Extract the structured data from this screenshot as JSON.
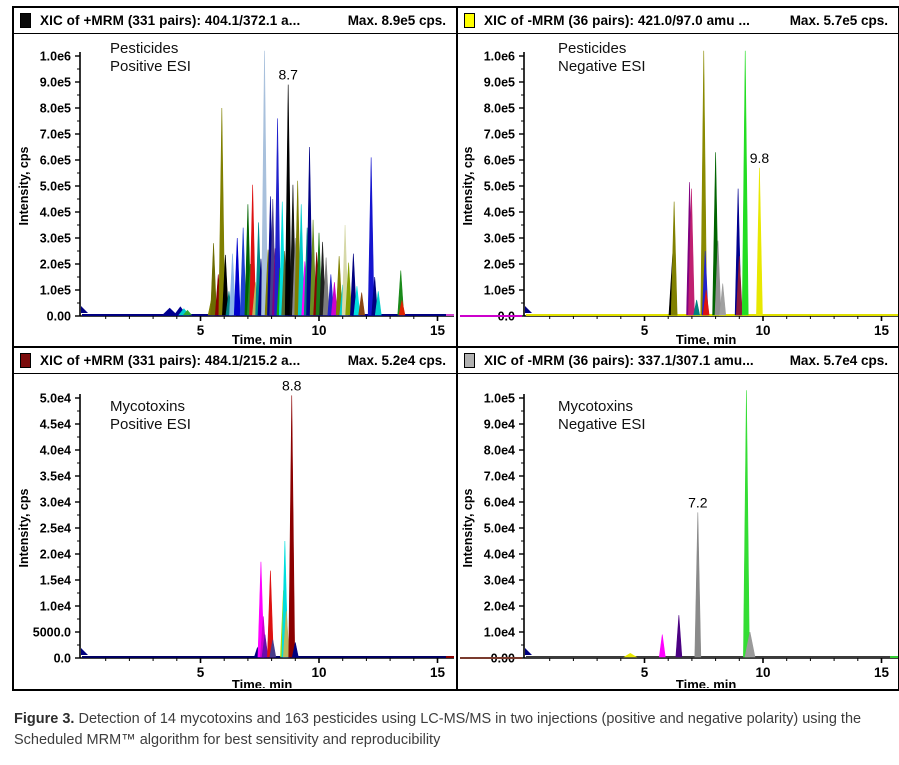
{
  "caption": {
    "label": "Figure 3.",
    "text": " Detection of 14 mycotoxins and 163 pesticides using LC-MS/MS in two injections (positive and negative polarity) using the Scheduled MRM™ algorithm for best sensitivity and reproducibility"
  },
  "chart_data": [
    {
      "type": "line",
      "kind": "chromatogram-overlay",
      "header": {
        "icon_color": "#0a0a0a",
        "title": "XIC of +MRM (331 pairs): 404.1/372.1 a...",
        "max_label": "Max. 8.9e5 cps."
      },
      "corner_label": [
        "Pesticides",
        "Positive ESI"
      ],
      "xlabel": "Time, min",
      "ylabel": "Intensity, cps",
      "xlim": [
        0,
        15.7
      ],
      "ylim": [
        0,
        1000000
      ],
      "x_major_ticks": [
        5,
        10,
        15
      ],
      "x_minor_step": 1,
      "y_tick_labels_top_to_bottom": [
        "1.0e6",
        "9.0e5",
        "8.0e5",
        "7.0e5",
        "6.0e5",
        "5.0e5",
        "4.0e5",
        "3.0e5",
        "2.0e5",
        "1.0e5",
        "0.00"
      ],
      "annotation": {
        "label": "8.7",
        "time": 8.7
      },
      "baseline_color": "#000080",
      "baseline_right_color": "#cc44cc",
      "baseline_left_color": null,
      "peaks": [
        [
          3.7,
          30000,
          "#000090",
          7
        ],
        [
          4.15,
          35000,
          "#000090",
          6
        ],
        [
          4.3,
          28000,
          "#00cccc",
          5
        ],
        [
          4.45,
          22000,
          "#33aa33",
          4
        ],
        [
          5.45,
          60000,
          "#808000"
        ],
        [
          5.55,
          280000,
          "#6b6b00"
        ],
        [
          5.75,
          160000,
          "#8b0000"
        ],
        [
          5.9,
          800000,
          "#808000"
        ],
        [
          6.05,
          235000,
          "#000000"
        ],
        [
          6.2,
          95000,
          "#008080"
        ],
        [
          6.35,
          240000,
          "#8ab4e8"
        ],
        [
          6.55,
          300000,
          "#0000cd"
        ],
        [
          6.8,
          340000,
          "#1e40d0"
        ],
        [
          7.0,
          430000,
          "#006400"
        ],
        [
          7.1,
          200000,
          "#228b22"
        ],
        [
          7.2,
          505000,
          "#dd1111"
        ],
        [
          7.32,
          130000,
          "#b8b860"
        ],
        [
          7.45,
          360000,
          "#008b8b"
        ],
        [
          7.55,
          220000,
          "#000080"
        ],
        [
          7.7,
          1020000,
          "#a8c0dc"
        ],
        [
          7.85,
          255000,
          "#808000"
        ],
        [
          7.95,
          460000,
          "#000090"
        ],
        [
          8.05,
          450000,
          "#483d8b"
        ],
        [
          8.15,
          260000,
          "#800080"
        ],
        [
          8.25,
          760000,
          "#2020cc"
        ],
        [
          8.35,
          185000,
          "#0faa0f"
        ],
        [
          8.45,
          440000,
          "#00e0e0"
        ],
        [
          8.55,
          250000,
          "#556b2f"
        ],
        [
          8.7,
          890000,
          "#000000"
        ],
        [
          8.9,
          505000,
          "#141414"
        ],
        [
          9.0,
          300000,
          "#8a8a8a"
        ],
        [
          9.1,
          520000,
          "#808000"
        ],
        [
          9.25,
          430000,
          "#00cccc"
        ],
        [
          9.4,
          210000,
          "#ff00ff"
        ],
        [
          9.5,
          340000,
          "#008080"
        ],
        [
          9.6,
          650000,
          "#000085"
        ],
        [
          9.75,
          370000,
          "#6b8e23"
        ],
        [
          9.9,
          245000,
          "#8b0000"
        ],
        [
          10.0,
          320000,
          "#1a7a1a"
        ],
        [
          10.15,
          285000,
          "#202020"
        ],
        [
          10.3,
          225000,
          "#7c7c7c"
        ],
        [
          10.5,
          160000,
          "#2222cc"
        ],
        [
          10.65,
          130000,
          "#cc00cc"
        ],
        [
          10.85,
          230000,
          "#808000"
        ],
        [
          11.0,
          120000,
          "#00cccc"
        ],
        [
          11.1,
          350000,
          "#d6d8a8"
        ],
        [
          11.25,
          205000,
          "#87a000"
        ],
        [
          11.45,
          240000,
          "#000080"
        ],
        [
          11.6,
          115000,
          "#00e0e0"
        ],
        [
          11.8,
          90000,
          "#8b4513"
        ],
        [
          12.2,
          610000,
          "#1515cf"
        ],
        [
          12.35,
          150000,
          "#000080"
        ],
        [
          12.5,
          95000,
          "#00cccc"
        ],
        [
          13.45,
          175000,
          "#1a8a1a"
        ],
        [
          13.5,
          60000,
          "#dd2200"
        ]
      ]
    },
    {
      "type": "line",
      "kind": "chromatogram-overlay",
      "header": {
        "icon_color": "#ffff00",
        "title": "XIC of -MRM (36 pairs): 421.0/97.0 amu ...",
        "max_label": "Max. 5.7e5 cps."
      },
      "corner_label": [
        "Pesticides",
        "Negative ESI"
      ],
      "xlabel": "Time, min",
      "ylabel": "Intensity, cps",
      "xlim": [
        0,
        15.7
      ],
      "ylim": [
        0,
        1000000
      ],
      "x_major_ticks": [
        5,
        10,
        15
      ],
      "x_minor_step": 1,
      "y_tick_labels_top_to_bottom": [
        "1.0e6",
        "9.0e5",
        "8.0e5",
        "7.0e5",
        "6.0e5",
        "5.0e5",
        "4.0e5",
        "3.0e5",
        "2.0e5",
        "1.0e5",
        "0.0"
      ],
      "annotation": {
        "label": "9.8",
        "time": 9.85
      },
      "baseline_color": "#e0e000",
      "baseline_right_color": "#e0e000",
      "baseline_left_color": "#cc00cc",
      "peaks": [
        [
          6.2,
          250000,
          "#000000",
          4
        ],
        [
          6.25,
          440000,
          "#808000"
        ],
        [
          6.9,
          515000,
          "#800080"
        ],
        [
          6.98,
          490000,
          "#c02070"
        ],
        [
          7.2,
          62000,
          "#008080"
        ],
        [
          7.5,
          1020000,
          "#8a8a00"
        ],
        [
          7.56,
          250000,
          "#2222cc"
        ],
        [
          7.6,
          100000,
          "#dd1111"
        ],
        [
          8.0,
          630000,
          "#006400"
        ],
        [
          8.1,
          290000,
          "#909090"
        ],
        [
          8.3,
          125000,
          "#a0a0a0"
        ],
        [
          8.95,
          490000,
          "#000090"
        ],
        [
          9.0,
          230000,
          "#8b1a3a"
        ],
        [
          9.25,
          1020000,
          "#22dd22"
        ],
        [
          9.85,
          570000,
          "#e8e800"
        ]
      ]
    },
    {
      "type": "line",
      "kind": "chromatogram-overlay",
      "header": {
        "icon_color": "#7b0c0c",
        "title": "XIC of +MRM (331 pairs): 484.1/215.2 a...",
        "max_label": "Max. 5.2e4 cps."
      },
      "corner_label": [
        "Mycotoxins",
        "Positive ESI"
      ],
      "xlabel": "Time, min",
      "ylabel": "Intensity, cps",
      "xlim": [
        0,
        15.7
      ],
      "ylim": [
        0,
        50000
      ],
      "x_major_ticks": [
        5,
        10,
        15
      ],
      "x_minor_step": 1,
      "y_tick_labels_top_to_bottom": [
        "5.0e4",
        "4.5e4",
        "4.0e4",
        "3.5e4",
        "3.0e4",
        "2.5e4",
        "2.0e4",
        "1.5e4",
        "1.0e4",
        "5000.0",
        "0.0"
      ],
      "annotation": {
        "label": "8.8",
        "time": 8.85
      },
      "baseline_color": "#000060",
      "baseline_right_color": "#8b0000",
      "baseline_left_color": null,
      "peaks": [
        [
          7.4,
          2000,
          "#000080",
          3
        ],
        [
          7.55,
          18500,
          "#ff00ff"
        ],
        [
          7.65,
          8000,
          "#cc00cc"
        ],
        [
          7.72,
          4500,
          "#6a0dad"
        ],
        [
          7.95,
          16800,
          "#dd1111"
        ],
        [
          8.05,
          3500,
          "#483d8b"
        ],
        [
          8.5,
          13000,
          "#aadd00"
        ],
        [
          8.56,
          22500,
          "#00dddd"
        ],
        [
          8.62,
          9000,
          "#b8b860"
        ],
        [
          8.85,
          50500,
          "#8b0000"
        ],
        [
          9.0,
          3000,
          "#000080"
        ]
      ]
    },
    {
      "type": "line",
      "kind": "chromatogram-overlay",
      "header": {
        "icon_color": "#b0b0b0",
        "title": "XIC of -MRM (36 pairs): 337.1/307.1 amu...",
        "max_label": "Max. 5.7e4 cps."
      },
      "corner_label": [
        "Mycotoxins",
        "Negative ESI"
      ],
      "xlabel": "Time, min",
      "ylabel": "Intensity, cps",
      "xlim": [
        0,
        15.7
      ],
      "ylim": [
        0,
        100000
      ],
      "x_major_ticks": [
        5,
        10,
        15
      ],
      "x_minor_step": 1,
      "y_tick_labels_top_to_bottom": [
        "1.0e5",
        "9.0e4",
        "8.0e4",
        "7.0e4",
        "6.0e4",
        "5.0e4",
        "4.0e4",
        "3.0e4",
        "2.0e4",
        "1.0e4",
        "0.00"
      ],
      "annotation": {
        "label": "7.2",
        "time": 7.25
      },
      "baseline_color": "#3a3a3a",
      "baseline_right_color": "#33cc33",
      "baseline_left_color": "#7a3b2e",
      "peaks": [
        [
          4.4,
          1800,
          "#e8e800",
          6
        ],
        [
          5.75,
          9000,
          "#ff00ff"
        ],
        [
          6.45,
          16500,
          "#4b0082"
        ],
        [
          7.25,
          56000,
          "#8a8a8a"
        ],
        [
          9.3,
          103000,
          "#33dd33"
        ],
        [
          9.45,
          10000,
          "#9a9a9a",
          5
        ]
      ]
    }
  ]
}
